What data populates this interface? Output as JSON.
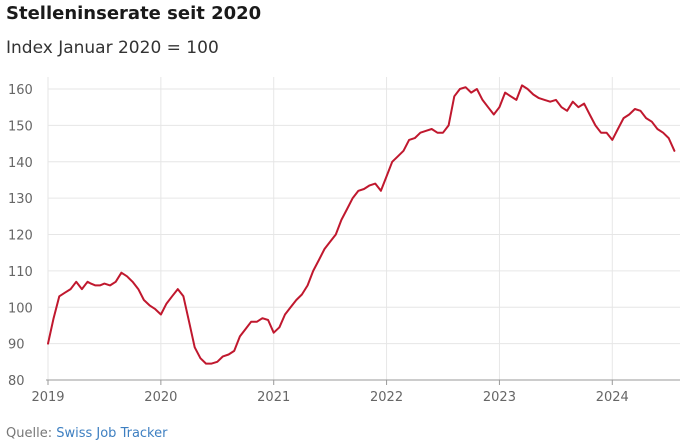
{
  "header": {
    "title": "Stelleninserate seit 2020",
    "subtitle": "Index Januar 2020 = 100"
  },
  "footer": {
    "source_label": "Quelle:",
    "source_name": "Swiss Job Tracker"
  },
  "colors": {
    "line": "#c0182e",
    "grid": "#e6e6e6",
    "axis": "#999999",
    "source_link": "#3d7fc1"
  },
  "chart_data": {
    "type": "line",
    "title": "Stelleninserate seit 2020",
    "subtitle": "Index Januar 2020 = 100",
    "xlabel": "",
    "ylabel": "",
    "xlim": [
      2019.0,
      2024.6
    ],
    "ylim": [
      80,
      162
    ],
    "yticks": [
      80,
      90,
      100,
      110,
      120,
      130,
      140,
      150,
      160
    ],
    "xticks": [
      2019,
      2020,
      2021,
      2022,
      2023,
      2024
    ],
    "grid": true,
    "legend": "none",
    "series": [
      {
        "x": [
          2019.0,
          2019.05,
          2019.1,
          2019.15,
          2019.2,
          2019.25,
          2019.3,
          2019.35,
          2019.38,
          2019.42,
          2019.46,
          2019.5,
          2019.55,
          2019.6,
          2019.65,
          2019.7,
          2019.75,
          2019.8,
          2019.85,
          2019.9,
          2019.95,
          2020.0,
          2020.05,
          2020.1,
          2020.15,
          2020.2,
          2020.25,
          2020.3,
          2020.35,
          2020.4,
          2020.45,
          2020.5,
          2020.55,
          2020.6,
          2020.65,
          2020.7,
          2020.75,
          2020.8,
          2020.85,
          2020.9,
          2020.95,
          2021.0,
          2021.05,
          2021.1,
          2021.15,
          2021.2,
          2021.25,
          2021.3,
          2021.35,
          2021.4,
          2021.45,
          2021.5,
          2021.55,
          2021.6,
          2021.65,
          2021.7,
          2021.75,
          2021.8,
          2021.85,
          2021.9,
          2021.95,
          2022.0,
          2022.05,
          2022.1,
          2022.15,
          2022.2,
          2022.25,
          2022.3,
          2022.35,
          2022.4,
          2022.45,
          2022.5,
          2022.55,
          2022.6,
          2022.65,
          2022.7,
          2022.75,
          2022.8,
          2022.85,
          2022.9,
          2022.95,
          2023.0,
          2023.05,
          2023.1,
          2023.15,
          2023.2,
          2023.25,
          2023.3,
          2023.35,
          2023.4,
          2023.45,
          2023.5,
          2023.55,
          2023.6,
          2023.65,
          2023.7,
          2023.75,
          2023.8,
          2023.85,
          2023.9,
          2023.95,
          2024.0,
          2024.05,
          2024.1,
          2024.15,
          2024.2,
          2024.25,
          2024.3,
          2024.35,
          2024.4,
          2024.45,
          2024.5,
          2024.55
        ],
        "values": [
          90,
          97,
          103,
          104,
          105,
          107,
          105,
          107,
          106.5,
          106,
          106,
          106.5,
          106,
          107,
          109.5,
          108.5,
          107,
          105,
          102,
          100.5,
          99.5,
          98,
          101,
          103,
          105,
          103,
          96,
          89,
          86,
          84.5,
          84.5,
          85,
          86.5,
          87,
          88,
          92,
          94,
          96,
          96,
          97,
          96.5,
          93,
          94.5,
          98,
          100,
          102,
          103.5,
          106,
          110,
          113,
          116,
          118,
          120,
          124,
          127,
          130,
          132,
          132.5,
          133.5,
          134,
          132,
          136,
          140,
          141.5,
          143,
          146,
          146.5,
          148,
          148.5,
          149,
          148,
          148,
          150,
          158,
          160,
          160.5,
          159,
          160,
          157,
          155,
          153,
          155,
          159,
          158,
          157,
          161,
          160,
          158.5,
          157.5,
          157,
          156.5,
          157,
          155,
          154,
          156.5,
          155,
          156,
          153,
          150,
          148,
          148,
          146,
          149,
          152,
          153,
          154.5,
          154,
          152,
          151,
          149,
          148,
          146.5,
          143
        ]
      }
    ]
  }
}
